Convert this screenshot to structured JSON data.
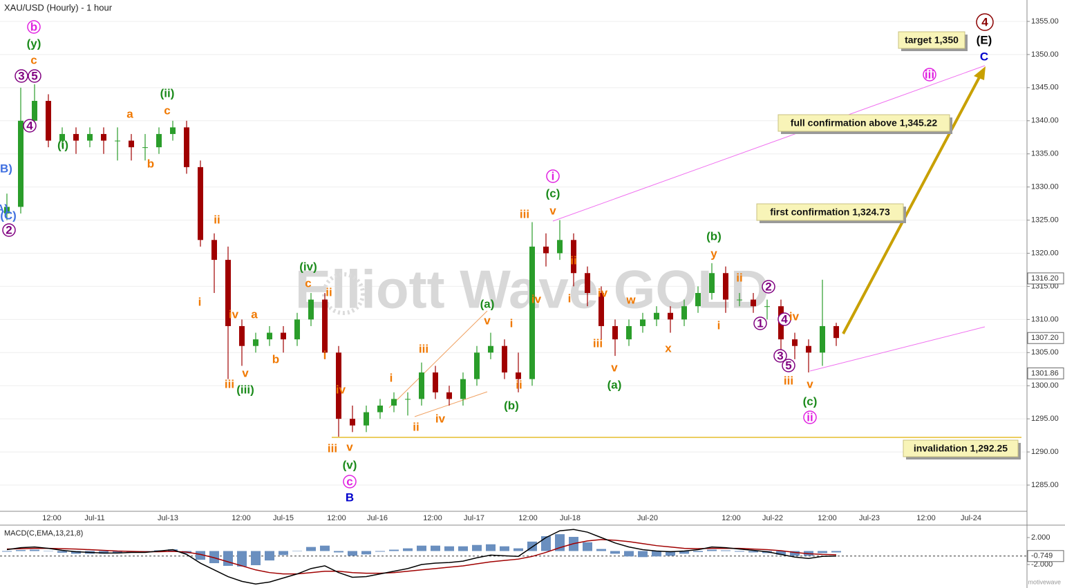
{
  "chart_data": {
    "type": "candlestick",
    "title": "XAU/USD (Hourly) - 1 hour",
    "watermark": "Elliott Wave GOLD",
    "brand": "motivewave",
    "up_color": "#2a9d2a",
    "down_color": "#a00000",
    "ylim": [
      1281.04,
      1358.23
    ],
    "yticks": [
      {
        "value": 1285,
        "label": "1285.00"
      },
      {
        "value": 1290,
        "label": "1290.00"
      },
      {
        "value": 1295,
        "label": "1295.00"
      },
      {
        "value": 1300,
        "label": "1300.00"
      },
      {
        "value": 1305,
        "label": "1305.00"
      },
      {
        "value": 1310,
        "label": "1310.00"
      },
      {
        "value": 1315,
        "label": "1315.00"
      },
      {
        "value": 1320,
        "label": "1320.00"
      },
      {
        "value": 1325,
        "label": "1325.00"
      },
      {
        "value": 1330,
        "label": "1330.00"
      },
      {
        "value": 1335,
        "label": "1335.00"
      },
      {
        "value": 1340,
        "label": "1340.00"
      },
      {
        "value": 1345,
        "label": "1345.00"
      },
      {
        "value": 1350,
        "label": "1350.00"
      },
      {
        "value": 1355,
        "label": "1355.00"
      }
    ],
    "categories": [
      "12:00",
      "Jul-11",
      "Jul-13",
      "12:00",
      "Jul-15",
      "12:00",
      "Jul-16",
      "12:00",
      "Jul-17",
      "12:00",
      "Jul-18",
      "Jul-20",
      "12:00",
      "Jul-22",
      "12:00",
      "Jul-23",
      "12:00",
      "Jul-24"
    ],
    "ohlc": [
      [
        1326,
        1329,
        1325,
        1327
      ],
      [
        1327,
        1345,
        1326,
        1340
      ],
      [
        1340,
        1345.5,
        1339,
        1343
      ],
      [
        1343,
        1344,
        1336,
        1337
      ],
      [
        1337,
        1339,
        1336,
        1338
      ],
      [
        1338,
        1339,
        1335,
        1337
      ],
      [
        1337,
        1339,
        1336,
        1338
      ],
      [
        1338,
        1339,
        1335,
        1337
      ],
      [
        1337,
        1339,
        1334,
        1337
      ],
      [
        1337,
        1338,
        1334,
        1336
      ],
      [
        1336,
        1338,
        1334,
        1336
      ],
      [
        1336,
        1339,
        1335,
        1338
      ],
      [
        1338,
        1340,
        1337,
        1339
      ],
      [
        1339,
        1340,
        1332,
        1333
      ],
      [
        1333,
        1334,
        1321,
        1322
      ],
      [
        1322,
        1323,
        1314,
        1319
      ],
      [
        1319,
        1321,
        1301,
        1309
      ],
      [
        1309,
        1310,
        1303,
        1306
      ],
      [
        1306,
        1308,
        1305,
        1307
      ],
      [
        1307,
        1309,
        1306,
        1308
      ],
      [
        1308,
        1309,
        1305,
        1307
      ],
      [
        1307,
        1311,
        1306,
        1310
      ],
      [
        1310,
        1314,
        1309,
        1313
      ],
      [
        1313,
        1314,
        1304,
        1305
      ],
      [
        1305,
        1306,
        1292.3,
        1295
      ],
      [
        1295,
        1297,
        1293,
        1294
      ],
      [
        1294,
        1297,
        1293,
        1296
      ],
      [
        1296,
        1298,
        1295,
        1297
      ],
      [
        1297,
        1299,
        1296,
        1298
      ],
      [
        1298,
        1299,
        1295.5,
        1298
      ],
      [
        1298,
        1303.5,
        1297,
        1302
      ],
      [
        1302,
        1303,
        1298,
        1299
      ],
      [
        1299,
        1300,
        1297,
        1298
      ],
      [
        1298,
        1302,
        1297,
        1301
      ],
      [
        1301,
        1306,
        1300,
        1305
      ],
      [
        1305,
        1308,
        1304,
        1306
      ],
      [
        1306,
        1307,
        1301,
        1302
      ],
      [
        1302,
        1305,
        1299,
        1301
      ],
      [
        1301,
        1324.7,
        1300,
        1321
      ],
      [
        1321,
        1323,
        1318,
        1320
      ],
      [
        1320,
        1325,
        1319,
        1322
      ],
      [
        1322,
        1323,
        1315,
        1317
      ],
      [
        1317,
        1318,
        1312,
        1314
      ],
      [
        1314,
        1315,
        1307,
        1309
      ],
      [
        1309,
        1310,
        1304.5,
        1307
      ],
      [
        1307,
        1310,
        1306,
        1309
      ],
      [
        1309,
        1311,
        1308,
        1310
      ],
      [
        1310,
        1312,
        1309,
        1311
      ],
      [
        1311,
        1312,
        1308,
        1310
      ],
      [
        1310,
        1313,
        1309,
        1312
      ],
      [
        1312,
        1315,
        1311,
        1314
      ],
      [
        1314,
        1318.5,
        1313,
        1317
      ],
      [
        1317,
        1318,
        1311,
        1313
      ],
      [
        1313,
        1314,
        1312,
        1313
      ],
      [
        1313,
        1314,
        1311,
        1312
      ],
      [
        1312,
        1313,
        1310,
        1312
      ],
      [
        1312,
        1313,
        1305,
        1307
      ],
      [
        1307,
        1308,
        1304,
        1306
      ],
      [
        1306,
        1307,
        1302,
        1305
      ],
      [
        1305,
        1316,
        1303,
        1309
      ],
      [
        1309,
        1309.5,
        1306,
        1307.2
      ]
    ],
    "price_tags": [
      {
        "value": 1316.2,
        "label": "1316.20",
        "color": "#ffffff"
      },
      {
        "value": 1307.2,
        "label": "1307.20",
        "color": "#ffffff"
      },
      {
        "value": 1301.86,
        "label": "1301.86",
        "color": "#ffffff"
      }
    ],
    "callouts": [
      "target 1,350",
      "full confirmation above 1,345.22",
      "first confirmation 1,324.73",
      "invalidation 1,292.25"
    ],
    "annotations": [
      {
        "text": "b",
        "color": "#e020e0",
        "circle": true
      },
      {
        "text": "(y)",
        "color": "#1a8a1a"
      },
      {
        "text": "c",
        "color": "#f07800"
      },
      {
        "text": "3",
        "color": "#800080",
        "circle": true
      },
      {
        "text": "5",
        "color": "#800080",
        "circle": true
      },
      {
        "text": "4",
        "color": "#800080",
        "circle": true
      },
      {
        "text": "B)",
        "color": "#4070e0"
      },
      {
        "text": "A)",
        "color": "#4070e0"
      },
      {
        "text": "(C)",
        "color": "#4070e0"
      },
      {
        "text": "2",
        "color": "#800080",
        "circle": true
      },
      {
        "text": "(i)",
        "color": "#1a8a1a"
      },
      {
        "text": "a",
        "color": "#f07800"
      },
      {
        "text": "b",
        "color": "#f07800"
      },
      {
        "text": "(ii)",
        "color": "#1a8a1a"
      },
      {
        "text": "c",
        "color": "#f07800"
      },
      {
        "text": "ii",
        "color": "#f07800"
      },
      {
        "text": "i",
        "color": "#f07800"
      },
      {
        "text": "iv",
        "color": "#f07800"
      },
      {
        "text": "a",
        "color": "#f07800"
      },
      {
        "text": "b",
        "color": "#f07800"
      },
      {
        "text": "iii",
        "color": "#f07800"
      },
      {
        "text": "v",
        "color": "#f07800"
      },
      {
        "text": "(iii)",
        "color": "#1a8a1a"
      },
      {
        "text": "(iv)",
        "color": "#1a8a1a"
      },
      {
        "text": "c",
        "color": "#f07800"
      },
      {
        "text": "ii",
        "color": "#f07800"
      },
      {
        "text": "i",
        "color": "#f07800"
      },
      {
        "text": "iv",
        "color": "#f07800"
      },
      {
        "text": "iii",
        "color": "#f07800"
      },
      {
        "text": "v",
        "color": "#f07800"
      },
      {
        "text": "(v)",
        "color": "#1a8a1a"
      },
      {
        "text": "c",
        "color": "#e020e0",
        "circle": true
      },
      {
        "text": "B",
        "color": "#0000cc"
      },
      {
        "text": "i",
        "color": "#f07800"
      },
      {
        "text": "iii",
        "color": "#f07800"
      },
      {
        "text": "ii",
        "color": "#f07800"
      },
      {
        "text": "iv",
        "color": "#f07800"
      },
      {
        "text": "(a)",
        "color": "#1a8a1a"
      },
      {
        "text": "v",
        "color": "#f07800"
      },
      {
        "text": "i",
        "color": "#f07800"
      },
      {
        "text": "ii",
        "color": "#f07800"
      },
      {
        "text": "(b)",
        "color": "#1a8a1a"
      },
      {
        "text": "iii",
        "color": "#f07800"
      },
      {
        "text": "iv",
        "color": "#f07800"
      },
      {
        "text": "i",
        "color": "#e020e0",
        "circle": true
      },
      {
        "text": "(c)",
        "color": "#1a8a1a"
      },
      {
        "text": "v",
        "color": "#f07800"
      },
      {
        "text": "ii",
        "color": "#f07800"
      },
      {
        "text": "i",
        "color": "#f07800"
      },
      {
        "text": "iv",
        "color": "#f07800"
      },
      {
        "text": "w",
        "color": "#f07800"
      },
      {
        "text": "iii",
        "color": "#f07800"
      },
      {
        "text": "v",
        "color": "#f07800"
      },
      {
        "text": "(a)",
        "color": "#1a8a1a"
      },
      {
        "text": "x",
        "color": "#f07800"
      },
      {
        "text": "(b)",
        "color": "#1a8a1a"
      },
      {
        "text": "y",
        "color": "#f07800"
      },
      {
        "text": "ii",
        "color": "#f07800"
      },
      {
        "text": "i",
        "color": "#f07800"
      },
      {
        "text": "2",
        "color": "#800080",
        "circle": true
      },
      {
        "text": "1",
        "color": "#800080",
        "circle": true
      },
      {
        "text": "4",
        "color": "#800080",
        "circle": true
      },
      {
        "text": "iv",
        "color": "#f07800"
      },
      {
        "text": "3",
        "color": "#800080",
        "circle": true
      },
      {
        "text": "5",
        "color": "#800080",
        "circle": true
      },
      {
        "text": "iii",
        "color": "#f07800"
      },
      {
        "text": "v",
        "color": "#f07800"
      },
      {
        "text": "(c)",
        "color": "#1a8a1a"
      },
      {
        "text": "ii",
        "color": "#e020e0",
        "circle": true
      },
      {
        "text": "iii",
        "color": "#e020e0",
        "circle": true
      },
      {
        "text": "4",
        "color": "#8b0000",
        "circle": true
      },
      {
        "text": "(E)",
        "color": "#000000"
      },
      {
        "text": "C",
        "color": "#0000cc"
      }
    ],
    "macd": {
      "title": "MACD(C,EMA,13,21,8)",
      "ylim": [
        -5.18,
        3.64
      ],
      "yticks": [
        {
          "value": 2,
          "label": "2.000"
        },
        {
          "value": -2,
          "label": "-2.000"
        }
      ],
      "tag": {
        "value": -0.749,
        "label": "-0.749"
      },
      "line_color": "#000000",
      "signal_color": "#a00000",
      "hist_color": "#6a8fbf",
      "line": [
        0.2,
        0.5,
        0.6,
        0.4,
        0.1,
        -0.1,
        -0.2,
        -0.3,
        -0.3,
        -0.2,
        -0.2,
        0,
        0.2,
        -0.5,
        -1.8,
        -2.8,
        -3.8,
        -4.5,
        -4.9,
        -4.6,
        -4.0,
        -3.4,
        -2.6,
        -2.2,
        -3.2,
        -3.9,
        -3.8,
        -3.4,
        -3.0,
        -2.6,
        -2.0,
        -1.8,
        -1.7,
        -1.5,
        -1.0,
        -0.6,
        -0.7,
        -0.8,
        0.6,
        2.0,
        3.0,
        3.2,
        2.8,
        2.0,
        1.2,
        0.6,
        0.2,
        0,
        -0.1,
        0,
        0.2,
        0.6,
        0.5,
        0.3,
        0.1,
        -0.1,
        -0.5,
        -0.9,
        -1.1,
        -0.8,
        -0.75
      ],
      "signal": [
        0.3,
        0.35,
        0.4,
        0.4,
        0.35,
        0.3,
        0.2,
        0.1,
        0,
        -0.05,
        -0.1,
        -0.1,
        -0.05,
        -0.15,
        -0.5,
        -1.0,
        -1.6,
        -2.2,
        -2.8,
        -3.2,
        -3.4,
        -3.4,
        -3.2,
        -3.0,
        -3.0,
        -3.2,
        -3.3,
        -3.3,
        -3.2,
        -3.0,
        -2.8,
        -2.6,
        -2.4,
        -2.2,
        -1.9,
        -1.6,
        -1.4,
        -1.2,
        -0.8,
        -0.2,
        0.5,
        1.1,
        1.5,
        1.7,
        1.6,
        1.4,
        1.1,
        0.8,
        0.6,
        0.4,
        0.35,
        0.4,
        0.4,
        0.4,
        0.3,
        0.2,
        0.05,
        -0.2,
        -0.4,
        -0.5,
        -0.55
      ],
      "histogram": [
        -0.1,
        0.15,
        0.2,
        0,
        -0.25,
        -0.4,
        -0.4,
        -0.4,
        -0.3,
        -0.15,
        -0.1,
        0.1,
        0.25,
        -0.35,
        -1.3,
        -1.8,
        -2.2,
        -2.3,
        -2.1,
        -1.4,
        -0.6,
        0,
        0.6,
        0.8,
        -0.2,
        -0.7,
        -0.5,
        -0.1,
        0.2,
        0.4,
        0.8,
        0.8,
        0.7,
        0.7,
        0.9,
        1.0,
        0.7,
        0.4,
        1.4,
        2.2,
        2.5,
        2.1,
        1.3,
        0.3,
        -0.4,
        -0.8,
        -0.9,
        -0.8,
        -0.7,
        -0.4,
        -0.15,
        0.2,
        0.1,
        -0.1,
        -0.2,
        -0.3,
        -0.55,
        -0.7,
        -0.7,
        -0.3,
        -0.2
      ]
    }
  }
}
